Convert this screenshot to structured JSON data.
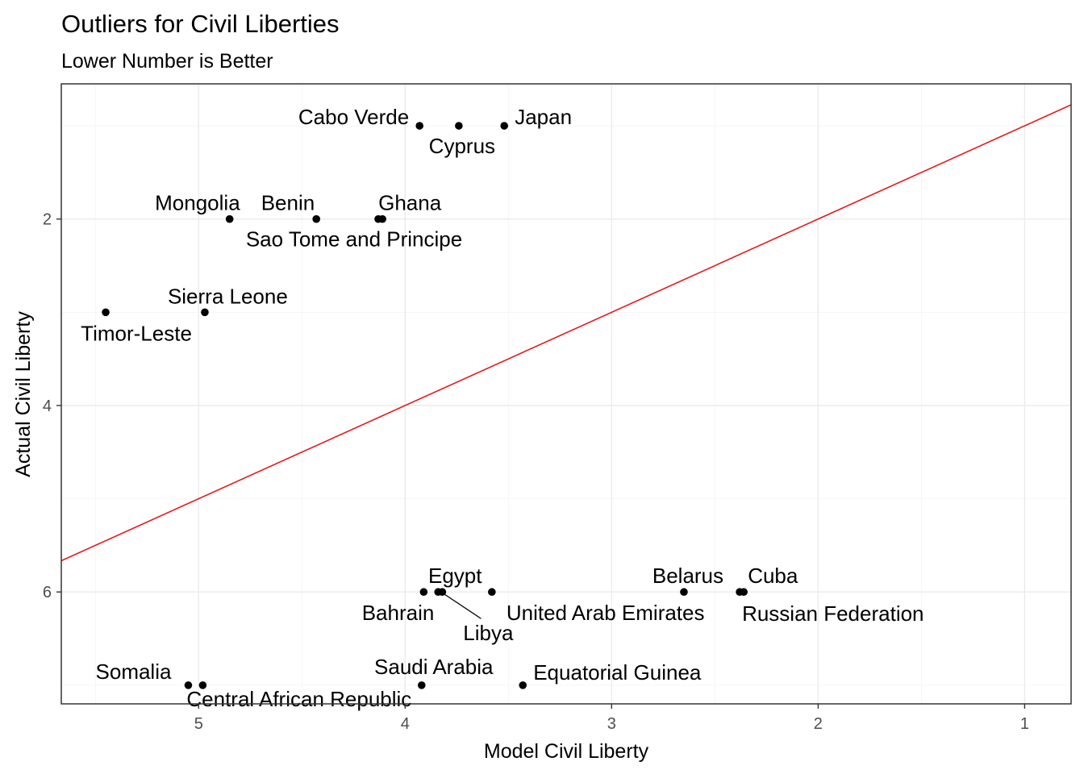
{
  "chart_data": {
    "type": "scatter",
    "title": "Outliers for Civil Liberties",
    "subtitle": "Lower Number is Better",
    "xlabel": "Model Civil Liberty",
    "ylabel": "Actual Civil Liberty",
    "x_reversed": true,
    "y_reversed": true,
    "xlim": [
      5.665,
      0.775
    ],
    "ylim": [
      0.55,
      7.2
    ],
    "x_ticks": [
      5,
      4,
      3,
      2,
      1
    ],
    "y_ticks": [
      2,
      4,
      6
    ],
    "grid": true,
    "reference_line": {
      "type": "identity",
      "slope": 1,
      "intercept": 0,
      "color": "#e41a1c"
    },
    "point_color": "#000000",
    "points": [
      {
        "label": "Cabo Verde",
        "x": 3.93,
        "y": 1
      },
      {
        "label": "Cyprus",
        "x": 3.74,
        "y": 1
      },
      {
        "label": "Japan",
        "x": 3.52,
        "y": 1
      },
      {
        "label": "Mongolia",
        "x": 4.85,
        "y": 2
      },
      {
        "label": "Benin",
        "x": 4.43,
        "y": 2
      },
      {
        "label": "Ghana",
        "x": 4.11,
        "y": 2
      },
      {
        "label": "Sao Tome and Principe",
        "x": 4.13,
        "y": 2
      },
      {
        "label": "Sierra Leone",
        "x": 4.97,
        "y": 3
      },
      {
        "label": "Timor-Leste",
        "x": 5.45,
        "y": 3
      },
      {
        "label": "Bahrain",
        "x": 3.91,
        "y": 6
      },
      {
        "label": "Egypt",
        "x": 3.84,
        "y": 6
      },
      {
        "label": "Libya",
        "x": 3.82,
        "y": 6
      },
      {
        "label": "United Arab Emirates",
        "x": 3.58,
        "y": 6
      },
      {
        "label": "Belarus",
        "x": 2.65,
        "y": 6
      },
      {
        "label": "Cuba",
        "x": 2.36,
        "y": 6
      },
      {
        "label": "Russian Federation",
        "x": 2.38,
        "y": 6
      },
      {
        "label": "Somalia",
        "x": 5.05,
        "y": 7
      },
      {
        "label": "Central African Republic",
        "x": 4.98,
        "y": 7
      },
      {
        "label": "Saudi Arabia",
        "x": 3.92,
        "y": 7
      },
      {
        "label": "Equatorial Guinea",
        "x": 3.43,
        "y": 7
      }
    ]
  }
}
